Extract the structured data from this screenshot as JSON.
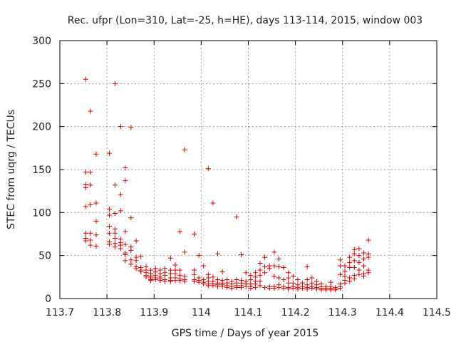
{
  "chart_data": {
    "type": "scatter",
    "title": "Rec. ufpr (Lon=310, Lat=-25, h=HE), days 113-114, 2015, window 003",
    "xlabel": "GPS time / Days of year 2015",
    "ylabel": "STEC from uqrg / TECUs",
    "xlim": [
      113.7,
      114.5
    ],
    "ylim": [
      0,
      300
    ],
    "grid": true,
    "marker": "plus",
    "color": "#e00000",
    "xticks": [
      113.7,
      113.8,
      113.9,
      114.0,
      114.1,
      114.2,
      114.3,
      114.4,
      114.5
    ],
    "xtick_labels": [
      "113.7",
      "113.8",
      "113.9",
      "114",
      "114.1",
      "114.2",
      "114.3",
      "114.4",
      "114.5"
    ],
    "yticks": [
      0,
      50,
      100,
      150,
      200,
      250,
      300
    ],
    "ytick_labels": [
      "0",
      "50",
      "100",
      "150",
      "200",
      "250",
      "300"
    ],
    "points": [
      [
        113.755,
        255
      ],
      [
        113.755,
        147
      ],
      [
        113.755,
        133
      ],
      [
        113.755,
        129
      ],
      [
        113.755,
        107
      ],
      [
        113.755,
        76
      ],
      [
        113.755,
        70
      ],
      [
        113.755,
        67
      ],
      [
        113.765,
        218
      ],
      [
        113.765,
        147
      ],
      [
        113.765,
        132
      ],
      [
        113.765,
        109
      ],
      [
        113.765,
        76
      ],
      [
        113.765,
        68
      ],
      [
        113.765,
        62
      ],
      [
        113.777,
        168
      ],
      [
        113.777,
        111
      ],
      [
        113.777,
        90
      ],
      [
        113.777,
        74
      ],
      [
        113.777,
        61
      ],
      [
        113.805,
        169
      ],
      [
        113.805,
        104
      ],
      [
        113.805,
        97
      ],
      [
        113.805,
        84
      ],
      [
        113.805,
        76
      ],
      [
        113.805,
        66
      ],
      [
        113.805,
        63
      ],
      [
        113.817,
        250
      ],
      [
        113.817,
        132
      ],
      [
        113.817,
        99
      ],
      [
        113.817,
        81
      ],
      [
        113.817,
        76
      ],
      [
        113.817,
        70
      ],
      [
        113.817,
        64
      ],
      [
        113.817,
        60
      ],
      [
        113.829,
        200
      ],
      [
        113.829,
        121
      ],
      [
        113.829,
        102
      ],
      [
        113.829,
        69
      ],
      [
        113.829,
        65
      ],
      [
        113.829,
        62
      ],
      [
        113.829,
        58
      ],
      [
        113.839,
        152
      ],
      [
        113.839,
        137
      ],
      [
        113.839,
        78
      ],
      [
        113.839,
        63
      ],
      [
        113.839,
        53
      ],
      [
        113.839,
        51
      ],
      [
        113.839,
        44
      ],
      [
        113.851,
        199
      ],
      [
        113.851,
        94
      ],
      [
        113.851,
        60
      ],
      [
        113.851,
        56
      ],
      [
        113.851,
        45
      ],
      [
        113.851,
        40
      ],
      [
        113.862,
        67
      ],
      [
        113.862,
        48
      ],
      [
        113.862,
        44
      ],
      [
        113.862,
        37
      ],
      [
        113.862,
        35
      ],
      [
        113.872,
        49
      ],
      [
        113.872,
        36
      ],
      [
        113.872,
        33
      ],
      [
        113.872,
        31
      ],
      [
        113.883,
        37
      ],
      [
        113.883,
        33
      ],
      [
        113.883,
        30
      ],
      [
        113.883,
        27
      ],
      [
        113.883,
        25
      ],
      [
        113.893,
        33
      ],
      [
        113.893,
        29
      ],
      [
        113.893,
        26
      ],
      [
        113.893,
        24
      ],
      [
        113.893,
        22
      ],
      [
        113.893,
        21
      ],
      [
        113.903,
        35
      ],
      [
        113.903,
        31
      ],
      [
        113.903,
        27
      ],
      [
        113.903,
        24
      ],
      [
        113.903,
        22
      ],
      [
        113.913,
        33
      ],
      [
        113.913,
        29
      ],
      [
        113.913,
        25
      ],
      [
        113.913,
        23
      ],
      [
        113.913,
        21
      ],
      [
        113.923,
        35
      ],
      [
        113.923,
        30
      ],
      [
        113.923,
        27
      ],
      [
        113.923,
        22
      ],
      [
        113.923,
        20
      ],
      [
        113.935,
        47
      ],
      [
        113.935,
        33
      ],
      [
        113.935,
        29
      ],
      [
        113.935,
        24
      ],
      [
        113.935,
        21
      ],
      [
        113.935,
        20
      ],
      [
        113.945,
        39
      ],
      [
        113.945,
        33
      ],
      [
        113.945,
        29
      ],
      [
        113.945,
        24
      ],
      [
        113.945,
        21
      ],
      [
        113.955,
        78
      ],
      [
        113.955,
        33
      ],
      [
        113.955,
        27
      ],
      [
        113.955,
        23
      ],
      [
        113.955,
        21
      ],
      [
        113.965,
        173
      ],
      [
        113.965,
        54
      ],
      [
        113.965,
        26
      ],
      [
        113.965,
        22
      ],
      [
        113.965,
        20
      ],
      [
        113.985,
        75
      ],
      [
        113.985,
        33
      ],
      [
        113.985,
        28
      ],
      [
        113.985,
        22
      ],
      [
        113.985,
        20
      ],
      [
        113.995,
        50
      ],
      [
        113.995,
        24
      ],
      [
        113.995,
        21
      ],
      [
        113.995,
        19
      ],
      [
        114.005,
        38
      ],
      [
        114.005,
        22
      ],
      [
        114.005,
        19
      ],
      [
        114.005,
        17
      ],
      [
        114.015,
        151
      ],
      [
        114.015,
        28
      ],
      [
        114.015,
        24
      ],
      [
        114.015,
        20
      ],
      [
        114.015,
        17
      ],
      [
        114.015,
        15
      ],
      [
        114.025,
        111
      ],
      [
        114.025,
        25
      ],
      [
        114.025,
        20
      ],
      [
        114.025,
        17
      ],
      [
        114.025,
        15
      ],
      [
        114.035,
        52
      ],
      [
        114.035,
        22
      ],
      [
        114.035,
        18
      ],
      [
        114.035,
        16
      ],
      [
        114.035,
        14
      ],
      [
        114.045,
        31
      ],
      [
        114.045,
        21
      ],
      [
        114.045,
        18
      ],
      [
        114.045,
        16
      ],
      [
        114.045,
        14
      ],
      [
        114.055,
        22
      ],
      [
        114.055,
        18
      ],
      [
        114.055,
        15
      ],
      [
        114.055,
        13
      ],
      [
        114.065,
        20
      ],
      [
        114.065,
        17
      ],
      [
        114.065,
        14
      ],
      [
        114.065,
        12
      ],
      [
        114.075,
        95
      ],
      [
        114.075,
        22
      ],
      [
        114.075,
        18
      ],
      [
        114.075,
        15
      ],
      [
        114.075,
        13
      ],
      [
        114.085,
        51
      ],
      [
        114.085,
        21
      ],
      [
        114.085,
        18
      ],
      [
        114.085,
        15
      ],
      [
        114.085,
        13
      ],
      [
        114.095,
        30
      ],
      [
        114.095,
        20
      ],
      [
        114.095,
        17
      ],
      [
        114.095,
        14
      ],
      [
        114.105,
        27
      ],
      [
        114.105,
        22
      ],
      [
        114.105,
        17
      ],
      [
        114.105,
        14
      ],
      [
        114.105,
        12
      ],
      [
        114.115,
        30
      ],
      [
        114.115,
        25
      ],
      [
        114.115,
        20
      ],
      [
        114.115,
        17
      ],
      [
        114.115,
        13
      ],
      [
        114.125,
        41
      ],
      [
        114.125,
        33
      ],
      [
        114.125,
        27
      ],
      [
        114.125,
        20
      ],
      [
        114.125,
        15
      ],
      [
        114.135,
        48
      ],
      [
        114.135,
        37
      ],
      [
        114.135,
        30
      ],
      [
        114.135,
        13
      ],
      [
        114.145,
        38
      ],
      [
        114.145,
        35
      ],
      [
        114.145,
        14
      ],
      [
        114.145,
        12
      ],
      [
        114.155,
        54
      ],
      [
        114.155,
        38
      ],
      [
        114.155,
        26
      ],
      [
        114.155,
        14
      ],
      [
        114.155,
        12
      ],
      [
        114.165,
        46
      ],
      [
        114.165,
        37
      ],
      [
        114.165,
        24
      ],
      [
        114.165,
        16
      ],
      [
        114.165,
        13
      ],
      [
        114.175,
        36
      ],
      [
        114.175,
        22
      ],
      [
        114.175,
        14
      ],
      [
        114.175,
        12
      ],
      [
        114.185,
        30
      ],
      [
        114.185,
        24
      ],
      [
        114.185,
        18
      ],
      [
        114.185,
        13
      ],
      [
        114.185,
        11
      ],
      [
        114.195,
        26
      ],
      [
        114.195,
        18
      ],
      [
        114.195,
        14
      ],
      [
        114.195,
        12
      ],
      [
        114.205,
        22
      ],
      [
        114.205,
        16
      ],
      [
        114.205,
        13
      ],
      [
        114.205,
        11
      ],
      [
        114.215,
        18
      ],
      [
        114.215,
        14
      ],
      [
        114.215,
        12
      ],
      [
        114.225,
        37
      ],
      [
        114.225,
        22
      ],
      [
        114.225,
        16
      ],
      [
        114.225,
        13
      ],
      [
        114.225,
        11
      ],
      [
        114.235,
        24
      ],
      [
        114.235,
        18
      ],
      [
        114.235,
        14
      ],
      [
        114.235,
        12
      ],
      [
        114.245,
        20
      ],
      [
        114.245,
        16
      ],
      [
        114.245,
        13
      ],
      [
        114.245,
        11
      ],
      [
        114.255,
        17
      ],
      [
        114.255,
        14
      ],
      [
        114.255,
        12
      ],
      [
        114.255,
        10
      ],
      [
        114.265,
        14
      ],
      [
        114.265,
        12
      ],
      [
        114.265,
        10
      ],
      [
        114.275,
        19
      ],
      [
        114.275,
        14
      ],
      [
        114.275,
        12
      ],
      [
        114.275,
        10
      ],
      [
        114.285,
        13
      ],
      [
        114.285,
        11
      ],
      [
        114.285,
        10
      ],
      [
        114.295,
        45
      ],
      [
        114.295,
        38
      ],
      [
        114.295,
        28
      ],
      [
        114.295,
        17
      ],
      [
        114.295,
        14
      ],
      [
        114.295,
        12
      ],
      [
        114.305,
        38
      ],
      [
        114.305,
        32
      ],
      [
        114.305,
        26
      ],
      [
        114.305,
        21
      ],
      [
        114.305,
        18
      ],
      [
        114.315,
        48
      ],
      [
        114.315,
        42
      ],
      [
        114.315,
        36
      ],
      [
        114.315,
        24
      ],
      [
        114.315,
        20
      ],
      [
        114.325,
        57
      ],
      [
        114.325,
        52
      ],
      [
        114.325,
        44
      ],
      [
        114.325,
        36
      ],
      [
        114.325,
        27
      ],
      [
        114.325,
        23
      ],
      [
        114.335,
        58
      ],
      [
        114.335,
        50
      ],
      [
        114.335,
        42
      ],
      [
        114.335,
        33
      ],
      [
        114.335,
        28
      ],
      [
        114.345,
        53
      ],
      [
        114.345,
        46
      ],
      [
        114.345,
        38
      ],
      [
        114.345,
        29
      ],
      [
        114.345,
        26
      ],
      [
        114.355,
        68
      ],
      [
        114.355,
        52
      ],
      [
        114.355,
        48
      ],
      [
        114.355,
        33
      ],
      [
        114.355,
        30
      ]
    ]
  }
}
